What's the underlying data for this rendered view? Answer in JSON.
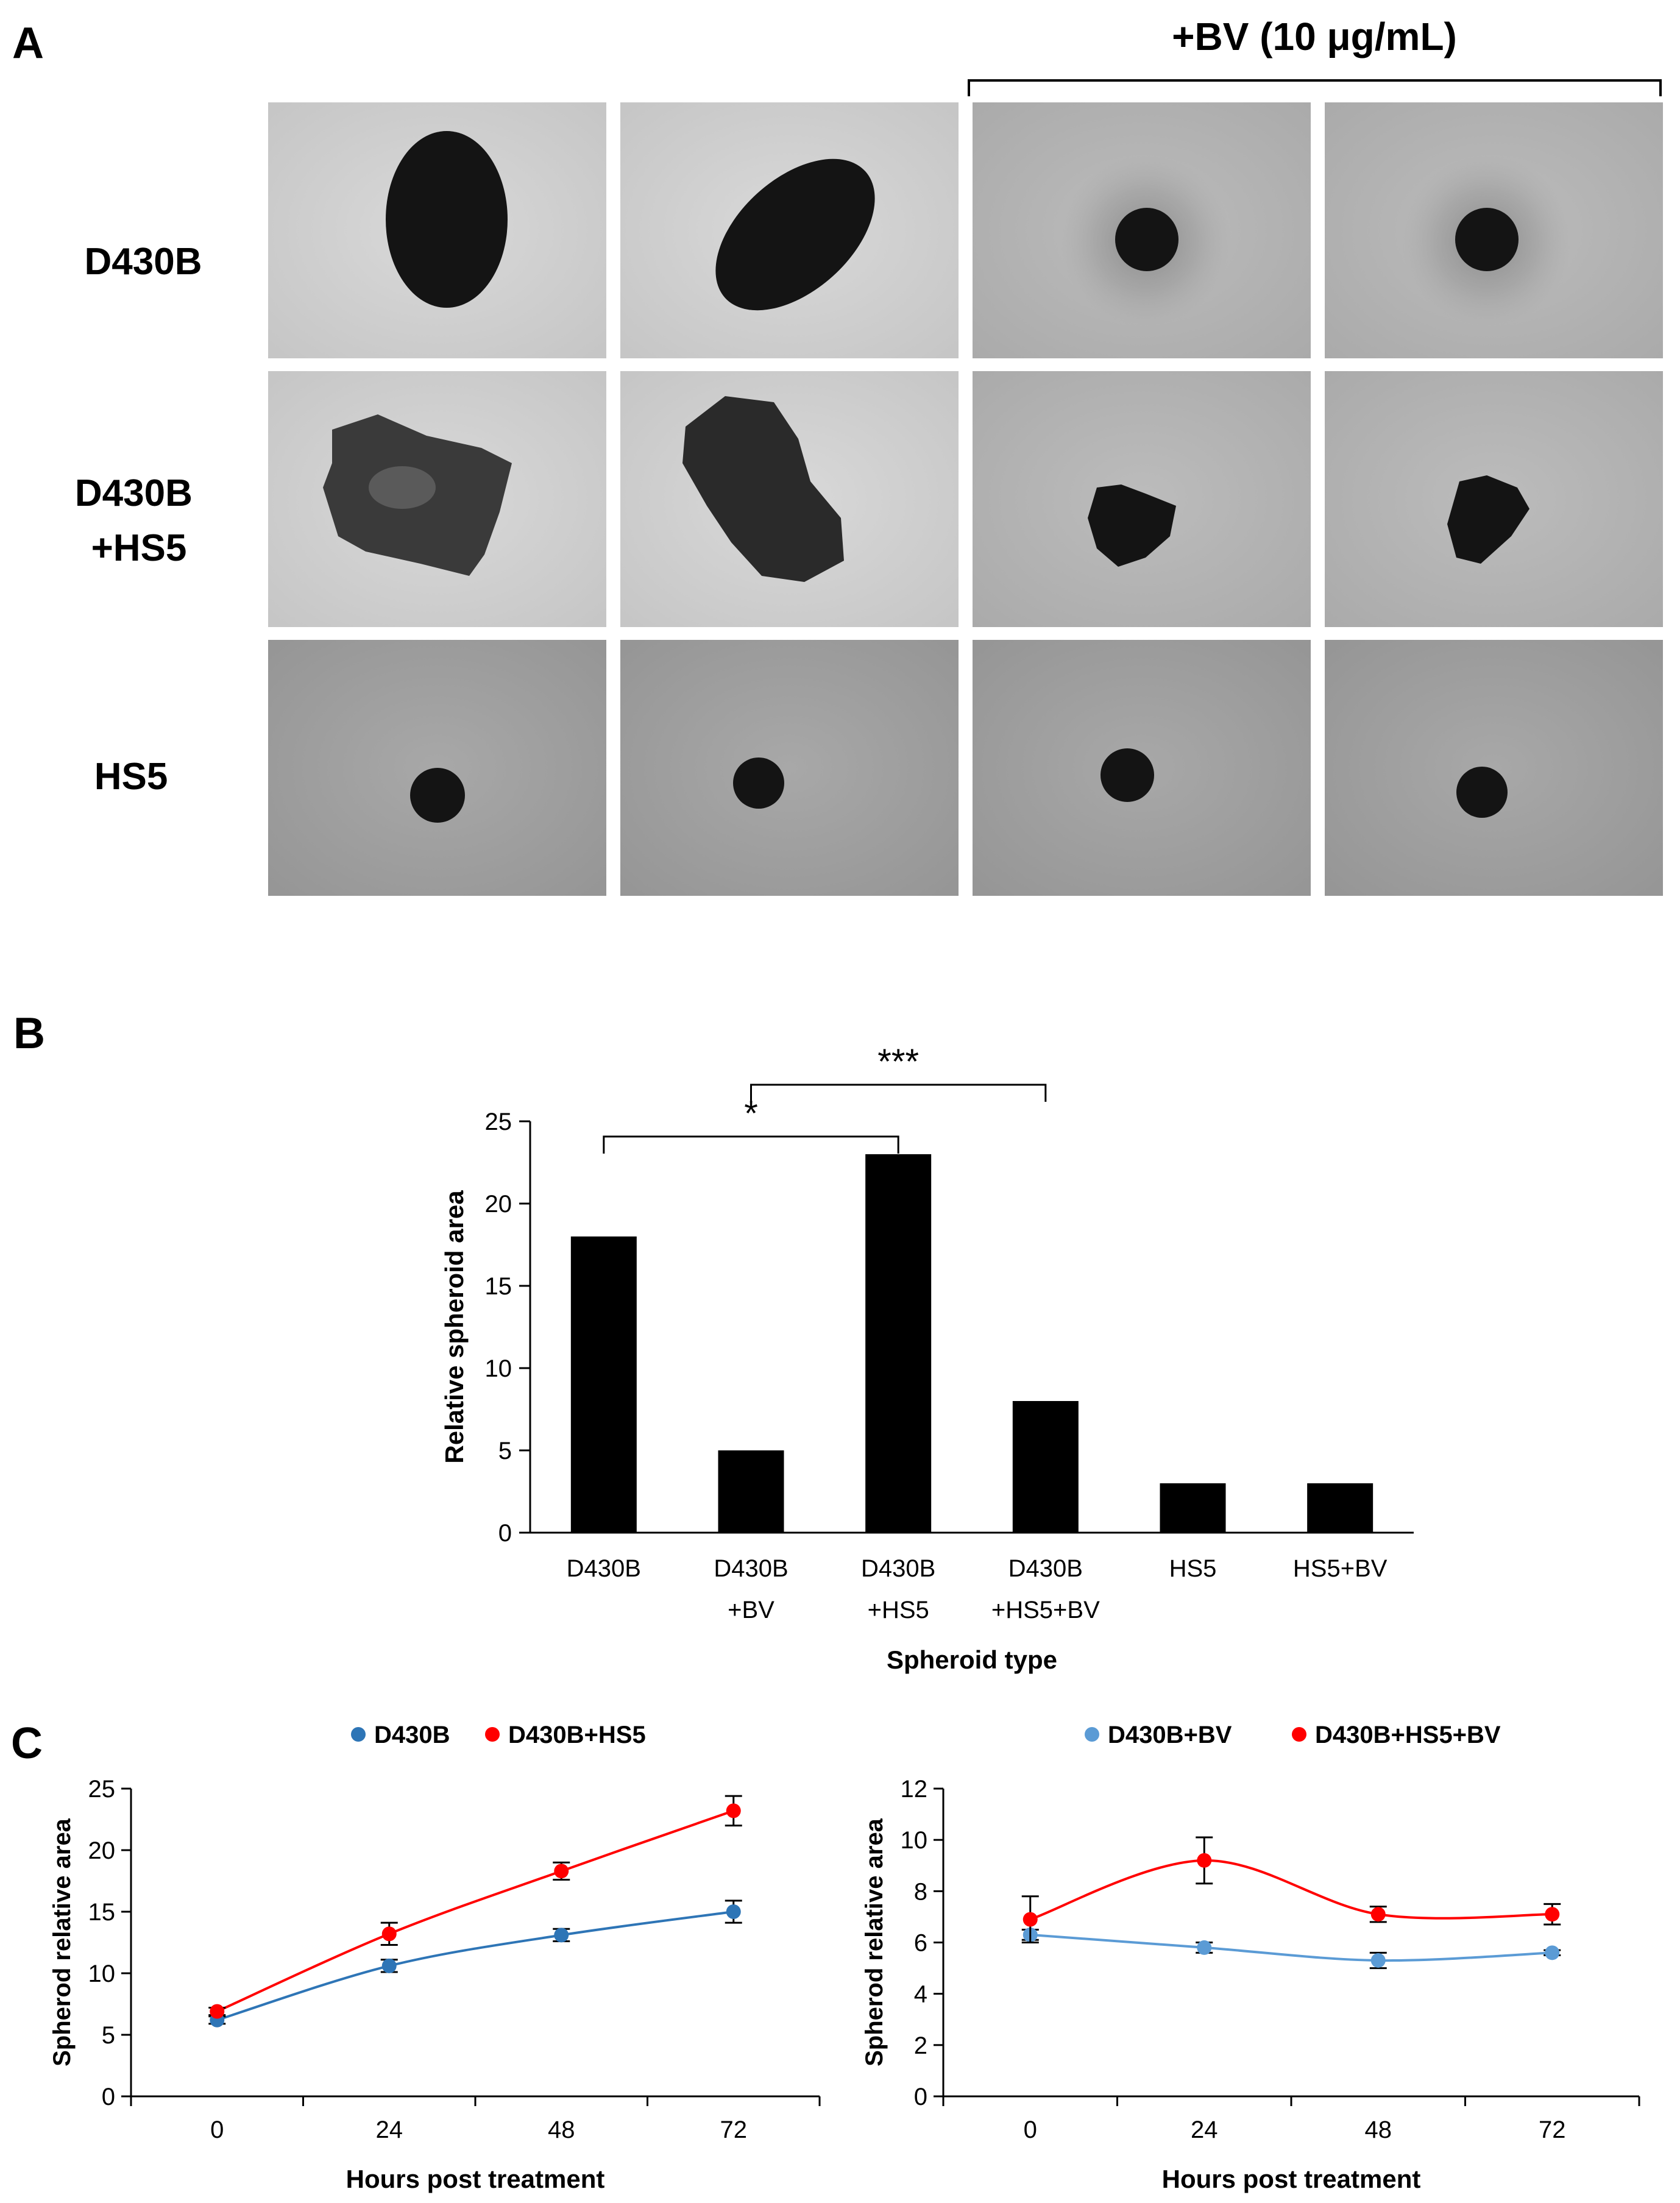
{
  "panel_a": {
    "letter": "A",
    "bv_label": "+BV (10 μg/mL)",
    "row_labels": [
      {
        "line1": "D430B",
        "line2": ""
      },
      {
        "line1": "D430B",
        "line2": "+HS5"
      },
      {
        "line1": "HS5",
        "line2": ""
      }
    ]
  },
  "panel_b": {
    "letter": "B"
  },
  "panel_c": {
    "letter": "C"
  },
  "chart_data": [
    {
      "type": "bar",
      "title": "",
      "categories": [
        {
          "line1": "D430B",
          "line2": ""
        },
        {
          "line1": "D430B",
          "line2": "+BV"
        },
        {
          "line1": "D430B",
          "line2": "+HS5"
        },
        {
          "line1": "D430B",
          "line2": "+HS5+BV"
        },
        {
          "line1": "HS5",
          "line2": ""
        },
        {
          "line1": "HS5+BV",
          "line2": ""
        }
      ],
      "values": [
        18,
        5,
        23,
        8,
        3,
        3
      ],
      "xlabel": "Spheroid type",
      "ylabel": "Relative spheroid area",
      "ylim": [
        0,
        25
      ],
      "yticks": [
        0,
        5,
        10,
        15,
        20,
        25
      ],
      "bar_color": "#000000",
      "significance": [
        {
          "from": 0,
          "to": 2,
          "label": "*"
        },
        {
          "from": 1,
          "to": 3,
          "label": "***"
        }
      ]
    },
    {
      "type": "line",
      "x": [
        0,
        24,
        48,
        72
      ],
      "xticks": [
        0,
        24,
        48,
        72
      ],
      "xlabel": "Hours post treatment",
      "ylabel": "Spherod relative area",
      "ylim": [
        0,
        25
      ],
      "yticks": [
        0,
        5,
        10,
        15,
        20,
        25
      ],
      "legend_position": "top",
      "series": [
        {
          "name": "D430B",
          "values": [
            6.2,
            10.6,
            13.1,
            15.0
          ],
          "errors": [
            0.3,
            0.5,
            0.5,
            0.9
          ],
          "color": "#2e75b6"
        },
        {
          "name": "D430B+HS5",
          "values": [
            6.9,
            13.2,
            18.3,
            23.2
          ],
          "errors": [
            0.3,
            0.9,
            0.7,
            1.2
          ],
          "color": "#ff0000"
        }
      ]
    },
    {
      "type": "line",
      "x": [
        0,
        24,
        48,
        72
      ],
      "xticks": [
        0,
        24,
        48,
        72
      ],
      "xlabel": "Hours post treatment",
      "ylabel": "Spherod relative area",
      "ylim": [
        0,
        12
      ],
      "yticks": [
        0,
        2,
        4,
        6,
        8,
        10,
        12
      ],
      "legend_position": "top",
      "series": [
        {
          "name": "D430B+BV",
          "values": [
            6.3,
            5.8,
            5.3,
            5.6
          ],
          "errors": [
            0.2,
            0.2,
            0.3,
            0.1
          ],
          "color": "#5b9bd5"
        },
        {
          "name": "D430B+HS5+BV",
          "values": [
            6.9,
            9.2,
            7.1,
            7.1
          ],
          "errors": [
            0.9,
            0.9,
            0.3,
            0.4
          ],
          "color": "#ff0000"
        }
      ]
    }
  ]
}
